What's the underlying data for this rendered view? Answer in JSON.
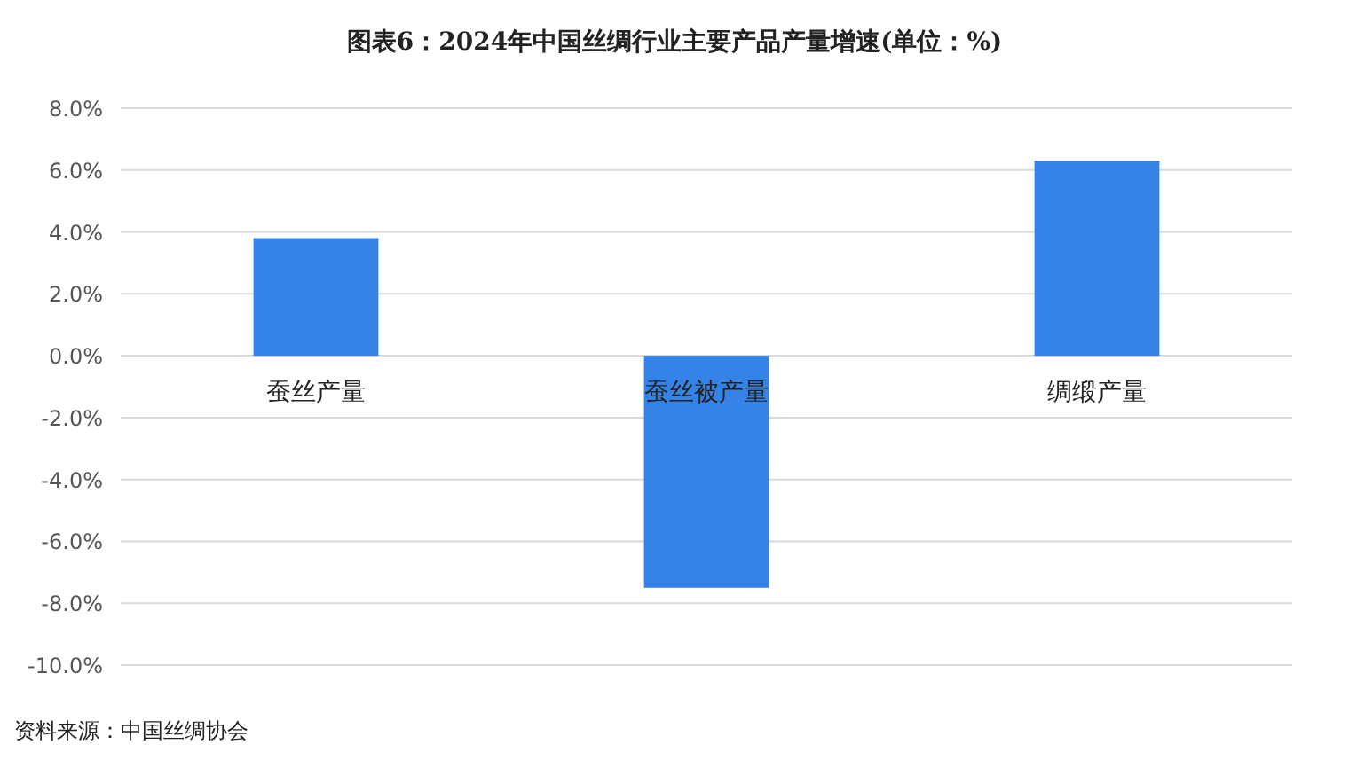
{
  "chart_data": {
    "type": "bar",
    "title": "图表6：2024年中国丝绸行业主要产品产量增速(单位：%)",
    "categories": [
      "蚕丝产量",
      "蚕丝被产量",
      "绸缎产量"
    ],
    "values": [
      3.8,
      -7.5,
      6.3
    ],
    "color": "#3583e6",
    "ylim": [
      -10,
      8
    ],
    "yticks": [
      {
        "value": -10,
        "label": "-10.0%"
      },
      {
        "value": -8,
        "label": "-8.0%"
      },
      {
        "value": -6,
        "label": "-6.0%"
      },
      {
        "value": -4,
        "label": "-4.0%"
      },
      {
        "value": -2,
        "label": "-2.0%"
      },
      {
        "value": 0,
        "label": "0.0%"
      },
      {
        "value": 2,
        "label": "2.0%"
      },
      {
        "value": 4,
        "label": "4.0%"
      },
      {
        "value": 6,
        "label": "6.0%"
      },
      {
        "value": 8,
        "label": "8.0%"
      }
    ],
    "grid": "y",
    "annotations": [
      "资料来源：中国丝绸协会"
    ]
  }
}
